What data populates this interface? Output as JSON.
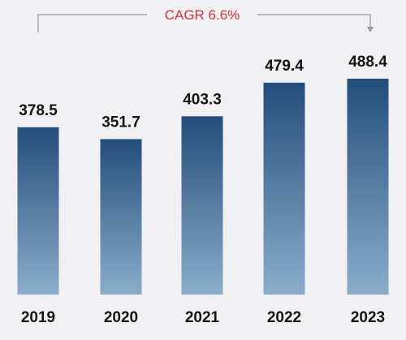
{
  "chart_data": {
    "type": "bar",
    "categories": [
      "2019",
      "2020",
      "2021",
      "2022",
      "2023"
    ],
    "values": [
      378.5,
      351.7,
      403.3,
      479.4,
      488.4
    ],
    "value_labels": [
      "378.5",
      "351.7",
      "403.3",
      "479.4",
      "488.4"
    ],
    "ylim": [
      0,
      500
    ],
    "grid": false,
    "annotation": {
      "text": "CAGR 6.6%",
      "from": "2019",
      "to": "2023"
    },
    "colors": {
      "bar_top": "#234e7b",
      "bar_bottom": "#8badcb",
      "annotation": "#d9343a",
      "bracket": "#9a9a9a",
      "text": "#141414",
      "background": "#f1f1f3"
    }
  }
}
